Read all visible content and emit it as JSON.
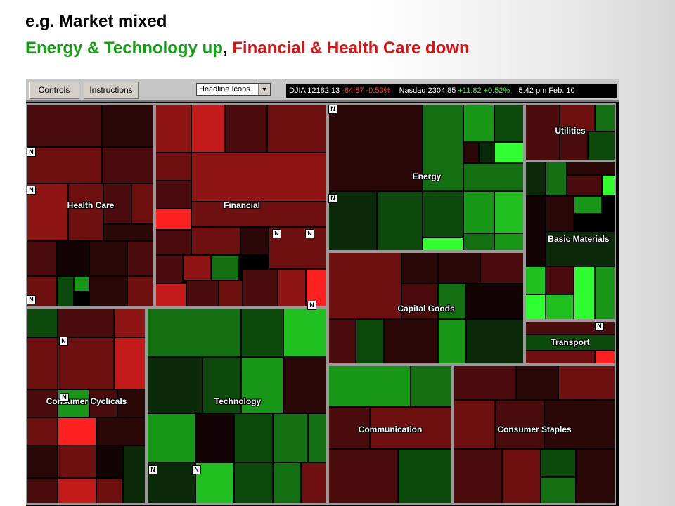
{
  "slide": {
    "title": "e.g. Market mixed",
    "subtitle_green": "Energy & Technology up",
    "subtitle_sep": ", ",
    "subtitle_red": "Financial & Health Care down"
  },
  "toolbar": {
    "controls_label": "Controls",
    "instructions_label": "Instructions",
    "dropdown_value": "Headline Icons"
  },
  "ticker": {
    "djia_label": "DJIA",
    "djia_value": "12182.13",
    "djia_change": "-64.87",
    "djia_pct": "-0.53%",
    "nasdaq_label": "Nasdaq",
    "nasdaq_value": "2304.85",
    "nasdaq_change": "+11.82",
    "nasdaq_pct": "+0.52%",
    "time": "5:42 pm",
    "date": "Feb. 10"
  },
  "news_badge": "N",
  "sectors": [
    {
      "key": "health_care",
      "label": "Health Care",
      "trend": "down"
    },
    {
      "key": "financial",
      "label": "Financial",
      "trend": "down"
    },
    {
      "key": "energy",
      "label": "Energy",
      "trend": "up"
    },
    {
      "key": "utilities",
      "label": "Utilities",
      "trend": "mixed"
    },
    {
      "key": "basic_materials",
      "label": "Basic Materials",
      "trend": "mixed"
    },
    {
      "key": "capital_goods",
      "label": "Capital Goods",
      "trend": "down"
    },
    {
      "key": "transport",
      "label": "Transport",
      "trend": "mixed"
    },
    {
      "key": "consumer_cyclicals",
      "label": "Consumer Cyclicals",
      "trend": "down"
    },
    {
      "key": "technology",
      "label": "Technology",
      "trend": "up"
    },
    {
      "key": "communication",
      "label": "Communication",
      "trend": "mixed"
    },
    {
      "key": "consumer_staples",
      "label": "Consumer Staples",
      "trend": "down"
    }
  ],
  "colors": {
    "subtitle_green": "#10a010",
    "subtitle_red": "#e01010",
    "ticker_down": "#ff4040",
    "ticker_up": "#40ff40",
    "sector_border": "#9a9a9a"
  }
}
